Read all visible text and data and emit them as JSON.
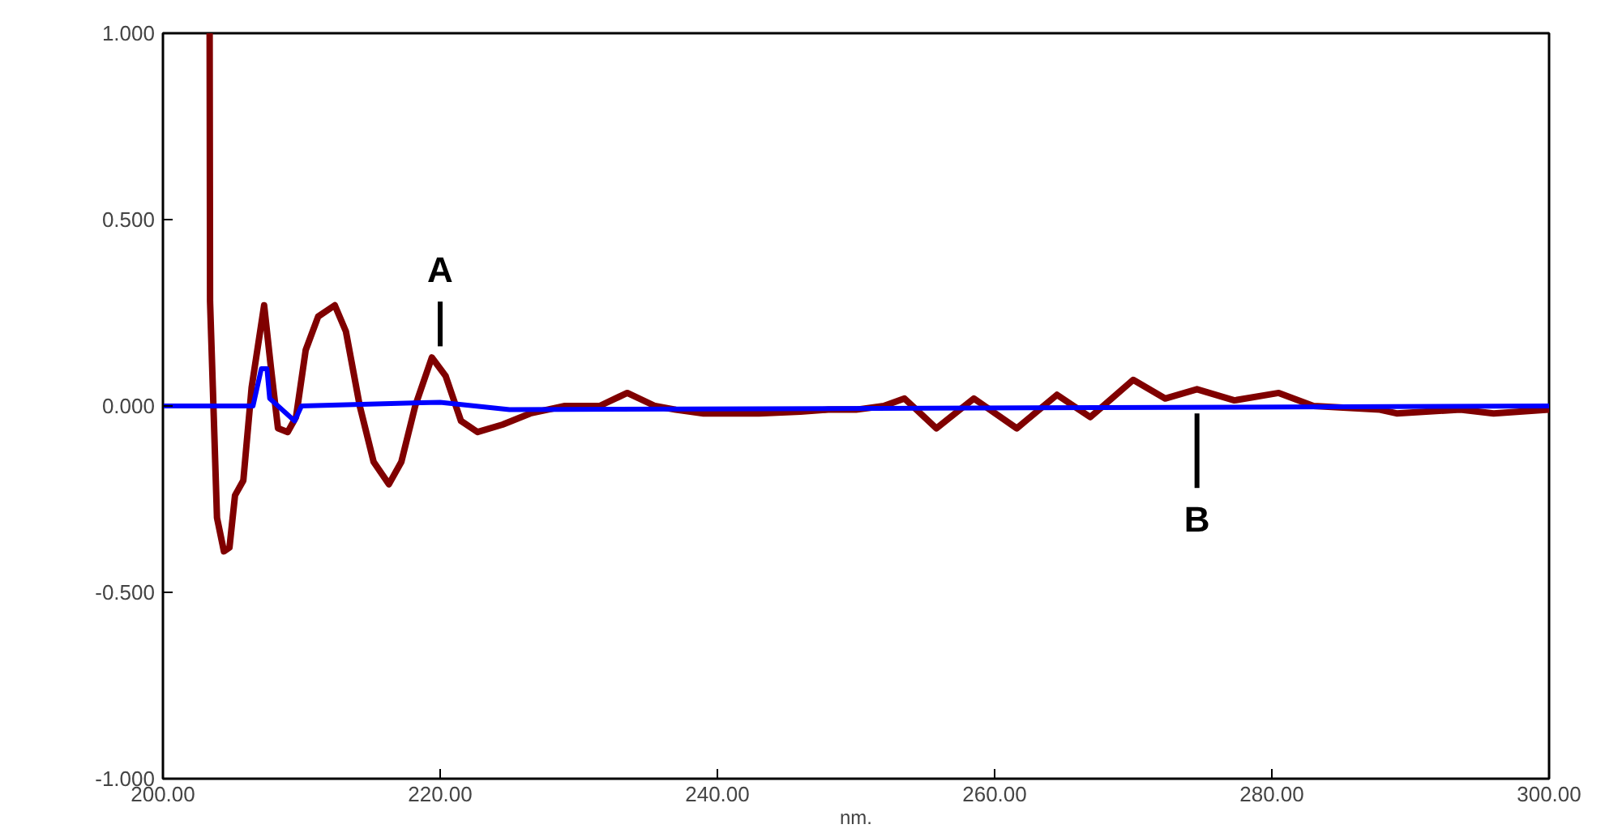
{
  "chart_data": {
    "type": "line",
    "xlabel": "nm.",
    "xlim": [
      200,
      300
    ],
    "ylim": [
      -1,
      1
    ],
    "xticks": [
      {
        "value": 200,
        "label": "200.00"
      },
      {
        "value": 220,
        "label": "220.00"
      },
      {
        "value": 240,
        "label": "240.00"
      },
      {
        "value": 260,
        "label": "260.00"
      },
      {
        "value": 280,
        "label": "280.00"
      },
      {
        "value": 300,
        "label": "300.00"
      }
    ],
    "yticks": [
      {
        "value": -1,
        "label": "-1.000"
      },
      {
        "value": -0.5,
        "label": "-0.500"
      },
      {
        "value": 0,
        "label": "0.000"
      },
      {
        "value": 0.5,
        "label": "0.500"
      },
      {
        "value": 1,
        "label": "1.000"
      }
    ],
    "grid": false,
    "series": [
      {
        "color": "#800000",
        "x": [
          203.37,
          203.4,
          203.6,
          203.9,
          204.4,
          204.8,
          205.2,
          205.8,
          206.4,
          207.3,
          207.8,
          208.3,
          209.0,
          209.6,
          210.3,
          211.2,
          212.4,
          213.2,
          214.2,
          215.2,
          216.3,
          217.2,
          218.2,
          219.4,
          220.4,
          221.5,
          222.7,
          224.5,
          226.5,
          229.0,
          231.5,
          233.5,
          235.5,
          237,
          239,
          243,
          246,
          248,
          250,
          252,
          253.5,
          255.8,
          258.5,
          261.6,
          264.5,
          266.9,
          270,
          272.3,
          274.6,
          277.3,
          280.5,
          283,
          287.8,
          289,
          293.6,
          296,
          300
        ],
        "values": [
          1.0,
          0.28,
          0.05,
          -0.3,
          -0.39,
          -0.38,
          -0.24,
          -0.2,
          0.05,
          0.27,
          0.1,
          -0.06,
          -0.07,
          -0.03,
          0.15,
          0.24,
          0.27,
          0.2,
          0.0,
          -0.15,
          -0.21,
          -0.15,
          0.0,
          0.13,
          0.08,
          -0.04,
          -0.07,
          -0.05,
          -0.02,
          0.0,
          0.0,
          0.035,
          0.0,
          -0.01,
          -0.02,
          -0.02,
          -0.015,
          -0.01,
          -0.01,
          0.0,
          0.02,
          -0.06,
          0.02,
          -0.06,
          0.03,
          -0.03,
          0.07,
          0.02,
          0.045,
          0.015,
          0.035,
          0.0,
          -0.01,
          -0.02,
          -0.01,
          -0.02,
          -0.01
        ]
      },
      {
        "color": "#0000ff",
        "x": [
          200,
          206.5,
          207.1,
          207.5,
          207.7,
          209.5,
          210,
          220,
          225,
          300
        ],
        "values": [
          0,
          0,
          0.1,
          0.1,
          0.02,
          -0.04,
          0,
          0.01,
          -0.01,
          0
        ]
      }
    ],
    "annotations": [
      {
        "text": "A",
        "x": 220.0,
        "y": 0.13
      },
      {
        "text": "B",
        "x": 274.6,
        "y": 0
      }
    ]
  }
}
